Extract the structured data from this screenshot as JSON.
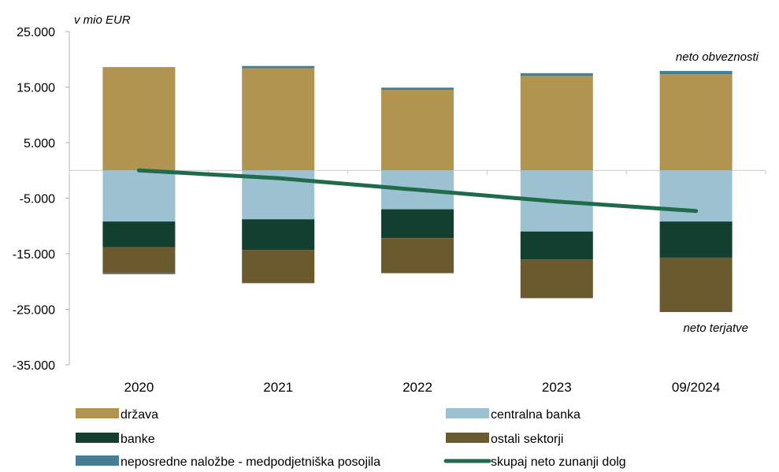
{
  "chart_data": {
    "type": "bar",
    "stacked": true,
    "unit_label": "v mio EUR",
    "categories": [
      "2020",
      "2021",
      "2022",
      "2023",
      "09/2024"
    ],
    "y_ticks": [
      "25.000",
      "15.000",
      "5.000",
      "-5.000",
      "-15.000",
      "-25.000",
      "-35.000"
    ],
    "y_tick_values": [
      25000,
      15000,
      5000,
      -5000,
      -15000,
      -25000,
      -35000
    ],
    "ylim": [
      -35000,
      25000
    ],
    "grid": false,
    "legend_position": "bottom",
    "annotations": {
      "top": "neto obveznosti",
      "bottom": "neto terjatve"
    },
    "series": [
      {
        "name": "država",
        "color": "#b09450",
        "values": [
          18600,
          18400,
          14500,
          17000,
          17300
        ]
      },
      {
        "name": "centralna banka",
        "color": "#9cc2d2",
        "values": [
          -9200,
          -8800,
          -7000,
          -11000,
          -9200
        ]
      },
      {
        "name": "banke",
        "color": "#123f30",
        "values": [
          -4600,
          -5500,
          -5200,
          -5000,
          -6500
        ]
      },
      {
        "name": "ostali sektorji",
        "color": "#6b5a2e",
        "values": [
          -4700,
          -6000,
          -6300,
          -7000,
          -9800
        ]
      },
      {
        "name": "neposredne naložbe - medpodjetniška posojila",
        "color": "#467f93",
        "values": [
          -200,
          400,
          400,
          500,
          600
        ]
      }
    ],
    "line_series": {
      "name": "skupaj neto zunanji dolg",
      "color": "#1f6b4c",
      "values": [
        0,
        -1400,
        -3500,
        -5600,
        -7300
      ]
    }
  }
}
